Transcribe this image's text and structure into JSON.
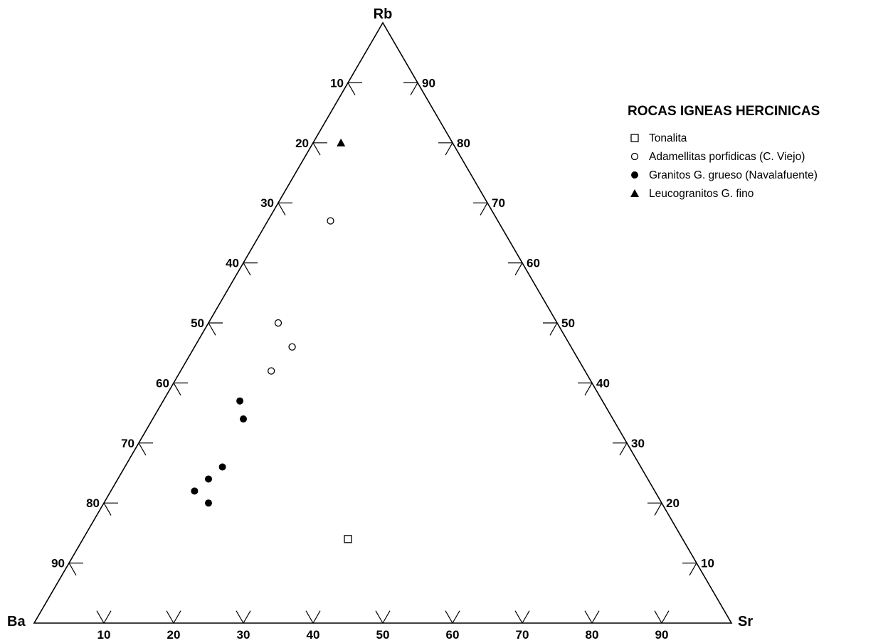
{
  "chart_data": {
    "type": "scatter",
    "subtype": "ternary",
    "vertices": {
      "top": "Rb",
      "left": "Ba",
      "right": "Sr"
    },
    "ticks": [
      10,
      20,
      30,
      40,
      50,
      60,
      70,
      80,
      90
    ],
    "legend": {
      "title": "ROCAS IGNEAS HERCINICAS",
      "placement": "top-right",
      "entries": [
        {
          "label": "Tonalita",
          "marker": "open-square"
        },
        {
          "label": "Adamellitas porfidicas (C. Viejo)",
          "marker": "open-circle"
        },
        {
          "label": "Granitos G. grueso (Navalafuente)",
          "marker": "filled-circle"
        },
        {
          "label": "Leucogranitos G. fino",
          "marker": "filled-triangle"
        }
      ]
    },
    "series": [
      {
        "name": "Tonalita",
        "marker": "open-square",
        "points": [
          {
            "Rb": 14,
            "Sr": 38,
            "Ba": 48
          }
        ]
      },
      {
        "name": "Adamellitas porfidicas (C. Viejo)",
        "marker": "open-circle",
        "points": [
          {
            "Rb": 67,
            "Sr": 9,
            "Ba": 24
          },
          {
            "Rb": 50,
            "Sr": 10,
            "Ba": 40
          },
          {
            "Rb": 46,
            "Sr": 14,
            "Ba": 40
          },
          {
            "Rb": 42,
            "Sr": 13,
            "Ba": 45
          }
        ]
      },
      {
        "name": "Granitos G. grueso (Navalafuente)",
        "marker": "filled-circle",
        "points": [
          {
            "Rb": 37,
            "Sr": 11,
            "Ba": 52
          },
          {
            "Rb": 34,
            "Sr": 13,
            "Ba": 53
          },
          {
            "Rb": 26,
            "Sr": 14,
            "Ba": 60
          },
          {
            "Rb": 24,
            "Sr": 13,
            "Ba": 63
          },
          {
            "Rb": 22,
            "Sr": 12,
            "Ba": 66
          },
          {
            "Rb": 20,
            "Sr": 15,
            "Ba": 65
          }
        ]
      },
      {
        "name": "Leucogranitos G. fino",
        "marker": "filled-triangle",
        "points": [
          {
            "Rb": 80,
            "Sr": 4,
            "Ba": 16
          }
        ]
      }
    ]
  }
}
